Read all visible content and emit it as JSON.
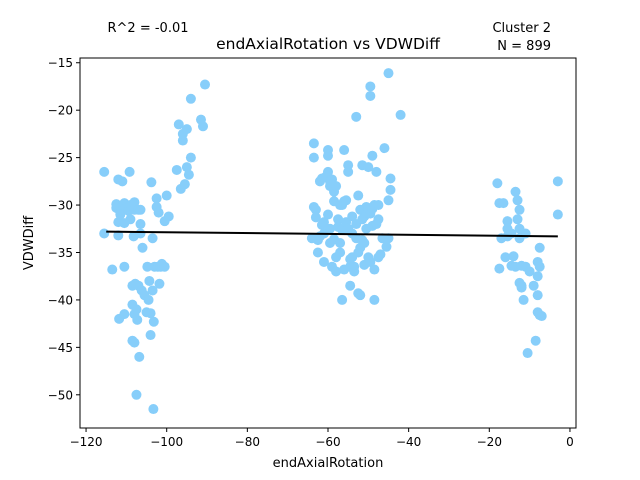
{
  "chart_data": {
    "type": "scatter",
    "title": "endAxialRotation vs VDWDiff",
    "xlabel": "endAxialRotation",
    "ylabel": "VDWDiff",
    "annotations": {
      "r2": "R^2 = -0.01",
      "cluster": "Cluster 2",
      "n": "N = 899"
    },
    "xlim": [
      -121.5,
      1.5
    ],
    "ylim": [
      -53.5,
      -14.5
    ],
    "xticks": [
      -120,
      -100,
      -80,
      -60,
      -40,
      -20,
      0
    ],
    "xtick_labels": [
      "−120",
      "−100",
      "−80",
      "−60",
      "−40",
      "−20",
      "0"
    ],
    "yticks": [
      -50,
      -45,
      -40,
      -35,
      -30,
      -25,
      -20,
      -15
    ],
    "ytick_labels": [
      "−50",
      "−45",
      "−40",
      "−35",
      "−30",
      "−25",
      "−20",
      "−15"
    ],
    "grid": false,
    "point_color": "#87CEFA",
    "line_color": "#000000",
    "regression": {
      "x": [
        -115,
        -3
      ],
      "y": [
        -32.8,
        -33.3
      ]
    },
    "points": [
      [
        -115.5,
        -26.5
      ],
      [
        -115.5,
        -33
      ],
      [
        -113.5,
        -36.8
      ],
      [
        -112.5,
        -30.3
      ],
      [
        -112.5,
        -29.9
      ],
      [
        -112,
        -31.8
      ],
      [
        -112,
        -33.2
      ],
      [
        -112,
        -27.3
      ],
      [
        -111.8,
        -42
      ],
      [
        -111.5,
        -30.8
      ],
      [
        -111.5,
        -31
      ],
      [
        -111,
        -27.5
      ],
      [
        -110.8,
        -30
      ],
      [
        -110.5,
        -29.8
      ],
      [
        -110.5,
        -31.9
      ],
      [
        -110.5,
        -36.5
      ],
      [
        -110.5,
        -41.5
      ],
      [
        -110,
        -30.3
      ],
      [
        -109.5,
        -30.6
      ],
      [
        -109.2,
        -26.5
      ],
      [
        -109,
        -30
      ],
      [
        -109,
        -31.5
      ],
      [
        -108.5,
        -38.5
      ],
      [
        -108.5,
        -44.3
      ],
      [
        -108.5,
        -40.5
      ],
      [
        -108.2,
        -33.3
      ],
      [
        -108,
        -29.7
      ],
      [
        -108,
        -30.5
      ],
      [
        -108,
        -41.5
      ],
      [
        -108,
        -44.5
      ],
      [
        -107.8,
        -38.3
      ],
      [
        -107.5,
        -50
      ],
      [
        -107.5,
        -41
      ],
      [
        -107.3,
        -42.1
      ],
      [
        -107,
        -30.5
      ],
      [
        -107,
        -38.5
      ],
      [
        -106.8,
        -46
      ],
      [
        -106.5,
        -32
      ],
      [
        -106.5,
        -33
      ],
      [
        -106.5,
        -30.5
      ],
      [
        -106.2,
        -39
      ],
      [
        -106,
        -34.5
      ],
      [
        -105.5,
        -39.5
      ],
      [
        -105,
        -41.3
      ],
      [
        -104.8,
        -36.5
      ],
      [
        -104.5,
        -40
      ],
      [
        -104.3,
        -38
      ],
      [
        -104,
        -43.7
      ],
      [
        -104,
        -41.4
      ],
      [
        -103.8,
        -27.6
      ],
      [
        -103.5,
        -33.5
      ],
      [
        -103.5,
        -39
      ],
      [
        -103.3,
        -51.5
      ],
      [
        -103.2,
        -42.3
      ],
      [
        -103,
        -36.5
      ],
      [
        -102.5,
        -29.3
      ],
      [
        -102.5,
        -30.2
      ],
      [
        -102.2,
        -36.5
      ],
      [
        -102,
        -30.8
      ],
      [
        -101.8,
        -38.3
      ],
      [
        -101.5,
        -36.5
      ],
      [
        -101.2,
        -36.2
      ],
      [
        -100.5,
        -31.7
      ],
      [
        -100.5,
        -36.5
      ],
      [
        -100,
        -29
      ],
      [
        -99.5,
        -31.2
      ],
      [
        -97.5,
        -26.3
      ],
      [
        -97,
        -21.5
      ],
      [
        -96.5,
        -28.3
      ],
      [
        -96,
        -23.2
      ],
      [
        -96,
        -22.5
      ],
      [
        -95.5,
        -27.8
      ],
      [
        -95,
        -26
      ],
      [
        -95,
        -22
      ],
      [
        -94.5,
        -26.8
      ],
      [
        -94,
        -25
      ],
      [
        -94,
        -18.8
      ],
      [
        -91.5,
        -21
      ],
      [
        -91,
        -21.7
      ],
      [
        -90.5,
        -17.3
      ],
      [
        -64,
        -33.5
      ],
      [
        -63.5,
        -30.2
      ],
      [
        -63.5,
        -25
      ],
      [
        -63.5,
        -23.5
      ],
      [
        -63,
        -30.5
      ],
      [
        -63,
        -31.3
      ],
      [
        -62.5,
        -33.7
      ],
      [
        -62.5,
        -35
      ],
      [
        -62,
        -33.3
      ],
      [
        -62,
        -27.5
      ],
      [
        -61.5,
        -32.1
      ],
      [
        -61.5,
        -27.2
      ],
      [
        -61,
        -33
      ],
      [
        -61,
        -31.8
      ],
      [
        -61,
        -36
      ],
      [
        -60.5,
        -27
      ],
      [
        -60,
        -26.5
      ],
      [
        -60,
        -24.2
      ],
      [
        -60,
        -24.8
      ],
      [
        -60,
        -31
      ],
      [
        -59.5,
        -28
      ],
      [
        -59.5,
        -27.5
      ],
      [
        -59.5,
        -32.5
      ],
      [
        -59.5,
        -34
      ],
      [
        -59,
        -36.5
      ],
      [
        -59,
        -27.3
      ],
      [
        -58.5,
        -28.6
      ],
      [
        -58.5,
        -29.6
      ],
      [
        -58.5,
        -33.6
      ],
      [
        -58,
        -35.5
      ],
      [
        -58,
        -37
      ],
      [
        -58,
        -28
      ],
      [
        -57.5,
        -31.5
      ],
      [
        -57.5,
        -32.3
      ],
      [
        -57,
        -34
      ],
      [
        -57,
        -30
      ],
      [
        -57,
        -35
      ],
      [
        -56.5,
        -40
      ],
      [
        -56.5,
        -32.6
      ],
      [
        -56.5,
        -30
      ],
      [
        -56,
        -29.6
      ],
      [
        -56,
        -24.2
      ],
      [
        -56,
        -36.8
      ],
      [
        -55.5,
        -31.8
      ],
      [
        -55.5,
        -29.5
      ],
      [
        -55,
        -26.5
      ],
      [
        -55,
        -25.8
      ],
      [
        -55,
        -32.5
      ],
      [
        -54.5,
        -38.5
      ],
      [
        -54.5,
        -36.5
      ],
      [
        -54.5,
        -35.7
      ],
      [
        -54,
        -35.5
      ],
      [
        -54,
        -31.2
      ],
      [
        -54,
        -33
      ],
      [
        -53.5,
        -36.5
      ],
      [
        -53.5,
        -37
      ],
      [
        -53,
        -33.5
      ],
      [
        -53,
        -32
      ],
      [
        -53,
        -20.7
      ],
      [
        -52.5,
        -39.3
      ],
      [
        -52.5,
        -35
      ],
      [
        -52.5,
        -29
      ],
      [
        -52,
        -34.5
      ],
      [
        -52,
        -30.5
      ],
      [
        -52,
        -39.5
      ],
      [
        -51.5,
        -31.5
      ],
      [
        -51.5,
        -25.8
      ],
      [
        -51.5,
        -33.7
      ],
      [
        -51,
        -36.3
      ],
      [
        -51,
        -34
      ],
      [
        -51,
        -31.2
      ],
      [
        -50.5,
        -30.2
      ],
      [
        -50.5,
        -30.8
      ],
      [
        -50.5,
        -32.5
      ],
      [
        -50,
        -26
      ],
      [
        -50,
        -35.5
      ],
      [
        -50,
        -30.5
      ],
      [
        -49.5,
        -30.9
      ],
      [
        -49.5,
        -36
      ],
      [
        -49.5,
        -17.5
      ],
      [
        -49.5,
        -18.5
      ],
      [
        -49,
        -30.4
      ],
      [
        -49,
        -32.2
      ],
      [
        -49,
        -24.8
      ],
      [
        -48.5,
        -36.8
      ],
      [
        -48.5,
        -40
      ],
      [
        -48.5,
        -30
      ],
      [
        -48,
        -26.5
      ],
      [
        -48,
        -32
      ],
      [
        -47.5,
        -35.5
      ],
      [
        -47.5,
        -31.5
      ],
      [
        -47.5,
        -30
      ],
      [
        -47,
        -35.2
      ],
      [
        -46.5,
        -33.5
      ],
      [
        -46,
        -24
      ],
      [
        -45.5,
        -34.4
      ],
      [
        -45,
        -16.1
      ],
      [
        -45,
        -29.5
      ],
      [
        -45,
        -33.5
      ],
      [
        -44.5,
        -27.2
      ],
      [
        -44.5,
        -28.4
      ],
      [
        -42,
        -20.5
      ],
      [
        -18,
        -27.7
      ],
      [
        -17.5,
        -29.8
      ],
      [
        -17.5,
        -36.7
      ],
      [
        -17,
        -33.5
      ],
      [
        -16.5,
        -29.8
      ],
      [
        -16,
        -35.5
      ],
      [
        -15.5,
        -31.7
      ],
      [
        -15.5,
        -32.5
      ],
      [
        -15.5,
        -33.3
      ],
      [
        -14.5,
        -33
      ],
      [
        -14.5,
        -36.4
      ],
      [
        -14,
        -35.4
      ],
      [
        -13.5,
        -28.6
      ],
      [
        -13.5,
        -36.5
      ],
      [
        -13,
        -29.5
      ],
      [
        -13,
        -31.5
      ],
      [
        -12.5,
        -32.5
      ],
      [
        -12.5,
        -30.5
      ],
      [
        -12.5,
        -33.5
      ],
      [
        -12.5,
        -38.2
      ],
      [
        -12,
        -36.4
      ],
      [
        -12,
        -38.7
      ],
      [
        -12,
        -38.5
      ],
      [
        -11.5,
        -40
      ],
      [
        -11,
        -36.5
      ],
      [
        -11,
        -33
      ],
      [
        -10.5,
        -45.6
      ],
      [
        -10,
        -37
      ],
      [
        -9,
        -38.5
      ],
      [
        -8.5,
        -44.3
      ],
      [
        -8,
        -37.5
      ],
      [
        -8,
        -36
      ],
      [
        -8,
        -41.3
      ],
      [
        -8,
        -39.5
      ],
      [
        -7.5,
        -41.6
      ],
      [
        -7.5,
        -36.5
      ],
      [
        -7.5,
        -34.5
      ],
      [
        -7,
        -41.7
      ],
      [
        -3,
        -27.5
      ],
      [
        -3,
        -31
      ]
    ]
  }
}
